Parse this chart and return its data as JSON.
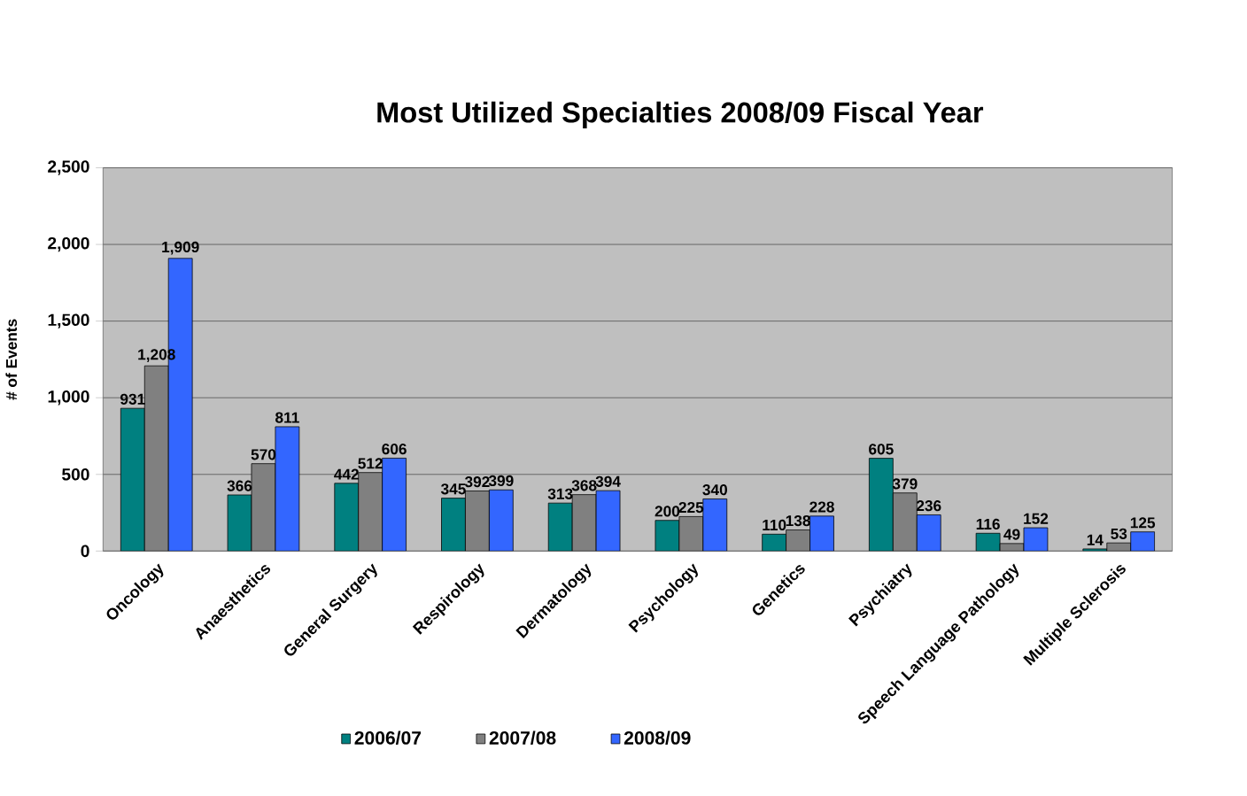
{
  "chart_data": {
    "type": "bar",
    "title": "Most Utilized Specialties  2008/09 Fiscal Year",
    "ylabel": "# of Events",
    "categories": [
      "Oncology",
      "Anaesthetics",
      "General Surgery",
      "Respirology",
      "Dermatology",
      "Psychology",
      "Genetics",
      "Psychiatry",
      "Speech Language Pathology",
      "Multiple Sclerosis"
    ],
    "series": [
      {
        "name": "2006/07",
        "color": "#008080",
        "values": [
          931,
          366,
          442,
          345,
          313,
          200,
          110,
          605,
          116,
          14
        ],
        "value_labels": [
          "931",
          "366",
          "442",
          "345",
          "313",
          "200",
          "110",
          "605",
          "116",
          "14"
        ]
      },
      {
        "name": "2007/08",
        "color": "#808080",
        "values": [
          1208,
          570,
          512,
          392,
          368,
          225,
          138,
          379,
          49,
          53
        ],
        "value_labels": [
          "1,208",
          "570",
          "512",
          "392",
          "368",
          "225",
          "138",
          "379",
          "49",
          "53"
        ]
      },
      {
        "name": "2008/09",
        "color": "#3366ff",
        "values": [
          1909,
          811,
          606,
          399,
          394,
          340,
          228,
          236,
          152,
          125
        ],
        "value_labels": [
          "1,909",
          "811",
          "606",
          "399",
          "394",
          "340",
          "228",
          "236",
          "152",
          "125"
        ]
      }
    ],
    "ylim": [
      0,
      2500
    ],
    "yticks": [
      0,
      {
        "value": 500,
        "label": "500"
      },
      {
        "value": 1000,
        "label": "1,000"
      },
      {
        "value": 1500,
        "label": "1,500"
      },
      {
        "value": 2000,
        "label": "2,000"
      },
      {
        "value": 2500,
        "label": "2,500"
      }
    ],
    "grid": "y",
    "legend": "bottom"
  }
}
